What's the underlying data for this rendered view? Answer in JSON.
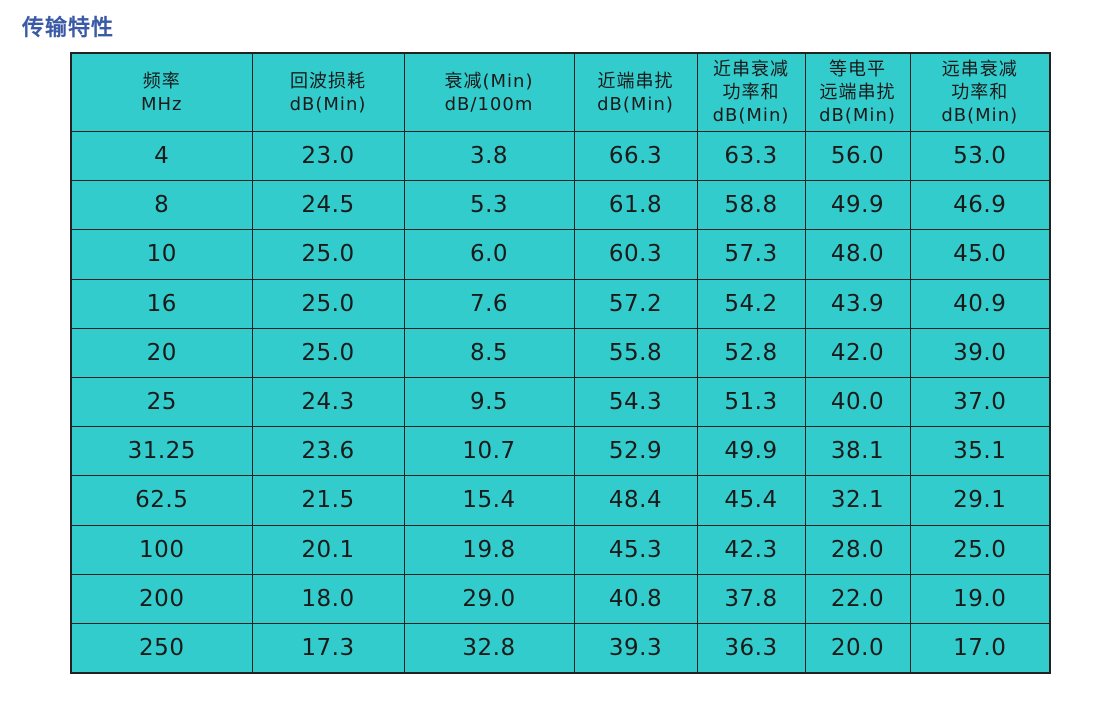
{
  "title": "传输特性",
  "table": {
    "headers": [
      [
        "频率",
        "MHz"
      ],
      [
        "回波损耗",
        "dB(Min)"
      ],
      [
        "衰减(Min)",
        "dB/100m"
      ],
      [
        "近端串扰",
        "dB(Min)"
      ],
      [
        "近串衰减",
        "功率和",
        "dB(Min)"
      ],
      [
        "等电平",
        "远端串扰",
        "dB(Min)"
      ],
      [
        "远串衰减",
        "功率和",
        "dB(Min)"
      ]
    ],
    "rows": [
      [
        "4",
        "23.0",
        "3.8",
        "66.3",
        "63.3",
        "56.0",
        "53.0"
      ],
      [
        "8",
        "24.5",
        "5.3",
        "61.8",
        "58.8",
        "49.9",
        "46.9"
      ],
      [
        "10",
        "25.0",
        "6.0",
        "60.3",
        "57.3",
        "48.0",
        "45.0"
      ],
      [
        "16",
        "25.0",
        "7.6",
        "57.2",
        "54.2",
        "43.9",
        "40.9"
      ],
      [
        "20",
        "25.0",
        "8.5",
        "55.8",
        "52.8",
        "42.0",
        "39.0"
      ],
      [
        "25",
        "24.3",
        "9.5",
        "54.3",
        "51.3",
        "40.0",
        "37.0"
      ],
      [
        "31.25",
        "23.6",
        "10.7",
        "52.9",
        "49.9",
        "38.1",
        "35.1"
      ],
      [
        "62.5",
        "21.5",
        "15.4",
        "48.4",
        "45.4",
        "32.1",
        "29.1"
      ],
      [
        "100",
        "20.1",
        "19.8",
        "45.3",
        "42.3",
        "28.0",
        "25.0"
      ],
      [
        "200",
        "18.0",
        "29.0",
        "40.8",
        "37.8",
        "22.0",
        "19.0"
      ],
      [
        "250",
        "17.3",
        "32.8",
        "39.3",
        "36.3",
        "20.0",
        "17.0"
      ]
    ]
  },
  "colors": {
    "cell_bg": "#33cccc",
    "title": "#3a5aa6",
    "border": "#222222"
  }
}
